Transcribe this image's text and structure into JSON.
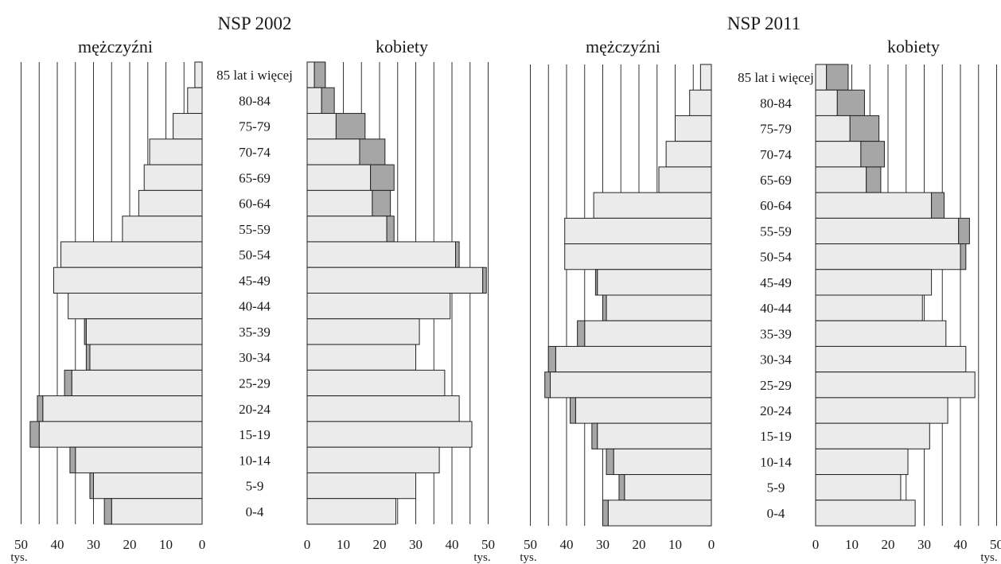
{
  "chart_data": [
    {
      "type": "bar",
      "title": "NSP 2002",
      "left_label": "mężczyźni",
      "right_label": "kobiety",
      "unit": "tys.",
      "xlim": [
        0,
        50
      ],
      "ticks": [
        0,
        10,
        20,
        30,
        40,
        50
      ],
      "categories": [
        "85 lat i więcej",
        "80-84",
        "75-79",
        "70-74",
        "65-69",
        "60-64",
        "55-59",
        "50-54",
        "45-49",
        "40-44",
        "35-39",
        "30-34",
        "25-29",
        "20-24",
        "15-19",
        "10-14",
        "5-9",
        "0-4"
      ],
      "series": [
        {
          "side": "left",
          "values": [
            2,
            4,
            8,
            14.5,
            16,
            17.5,
            22,
            39,
            41,
            37,
            32,
            31,
            36,
            44,
            45,
            35,
            30,
            25
          ]
        },
        {
          "side": "left",
          "values": [
            0,
            0,
            0,
            0,
            0,
            0,
            0,
            0,
            0,
            0,
            0.5,
            1,
            2,
            1.5,
            2.5,
            1.5,
            1,
            2
          ]
        },
        {
          "side": "right",
          "values": [
            2,
            4,
            8,
            14.5,
            17.5,
            18,
            22,
            41,
            48.5,
            39.5,
            31,
            30,
            38,
            42,
            45.5,
            36.5,
            30,
            24.5
          ]
        },
        {
          "side": "right",
          "values": [
            3,
            3.5,
            8,
            7,
            6.5,
            5,
            2,
            1,
            1,
            0,
            0,
            0,
            0,
            0,
            0,
            0,
            0,
            0
          ]
        }
      ]
    },
    {
      "type": "bar",
      "title": "NSP 2011",
      "left_label": "mężczyźni",
      "right_label": "kobiety",
      "unit": "tys.",
      "xlim": [
        0,
        50
      ],
      "ticks": [
        0,
        10,
        20,
        30,
        40,
        50
      ],
      "categories": [
        "85 lat i więcej",
        "80-84",
        "75-79",
        "70-74",
        "65-69",
        "60-64",
        "55-59",
        "50-54",
        "45-49",
        "40-44",
        "35-39",
        "30-34",
        "25-29",
        "20-24",
        "15-19",
        "10-14",
        "5-9",
        "0-4"
      ],
      "series": [
        {
          "side": "left",
          "values": [
            3,
            6,
            10,
            12.5,
            14.5,
            32.5,
            40.5,
            40.5,
            31.5,
            29,
            35,
            43,
            44.5,
            37.5,
            31.5,
            27,
            24,
            28.5
          ]
        },
        {
          "side": "left",
          "values": [
            0,
            0,
            0,
            0,
            0,
            0,
            0,
            0,
            0.5,
            1,
            2,
            2,
            1.5,
            1.5,
            1.5,
            2,
            1.5,
            1.5
          ]
        },
        {
          "side": "right",
          "values": [
            3,
            6,
            9.5,
            12.5,
            14,
            32,
            39.5,
            40,
            32,
            29.5,
            36,
            41.5,
            44,
            36.5,
            31.5,
            25.5,
            23.5,
            27.5
          ]
        },
        {
          "side": "right",
          "values": [
            6,
            7.5,
            8,
            6.5,
            4,
            3.5,
            3,
            1.5,
            0,
            0,
            0,
            0,
            0,
            0,
            0,
            0,
            0,
            0
          ]
        }
      ]
    }
  ]
}
